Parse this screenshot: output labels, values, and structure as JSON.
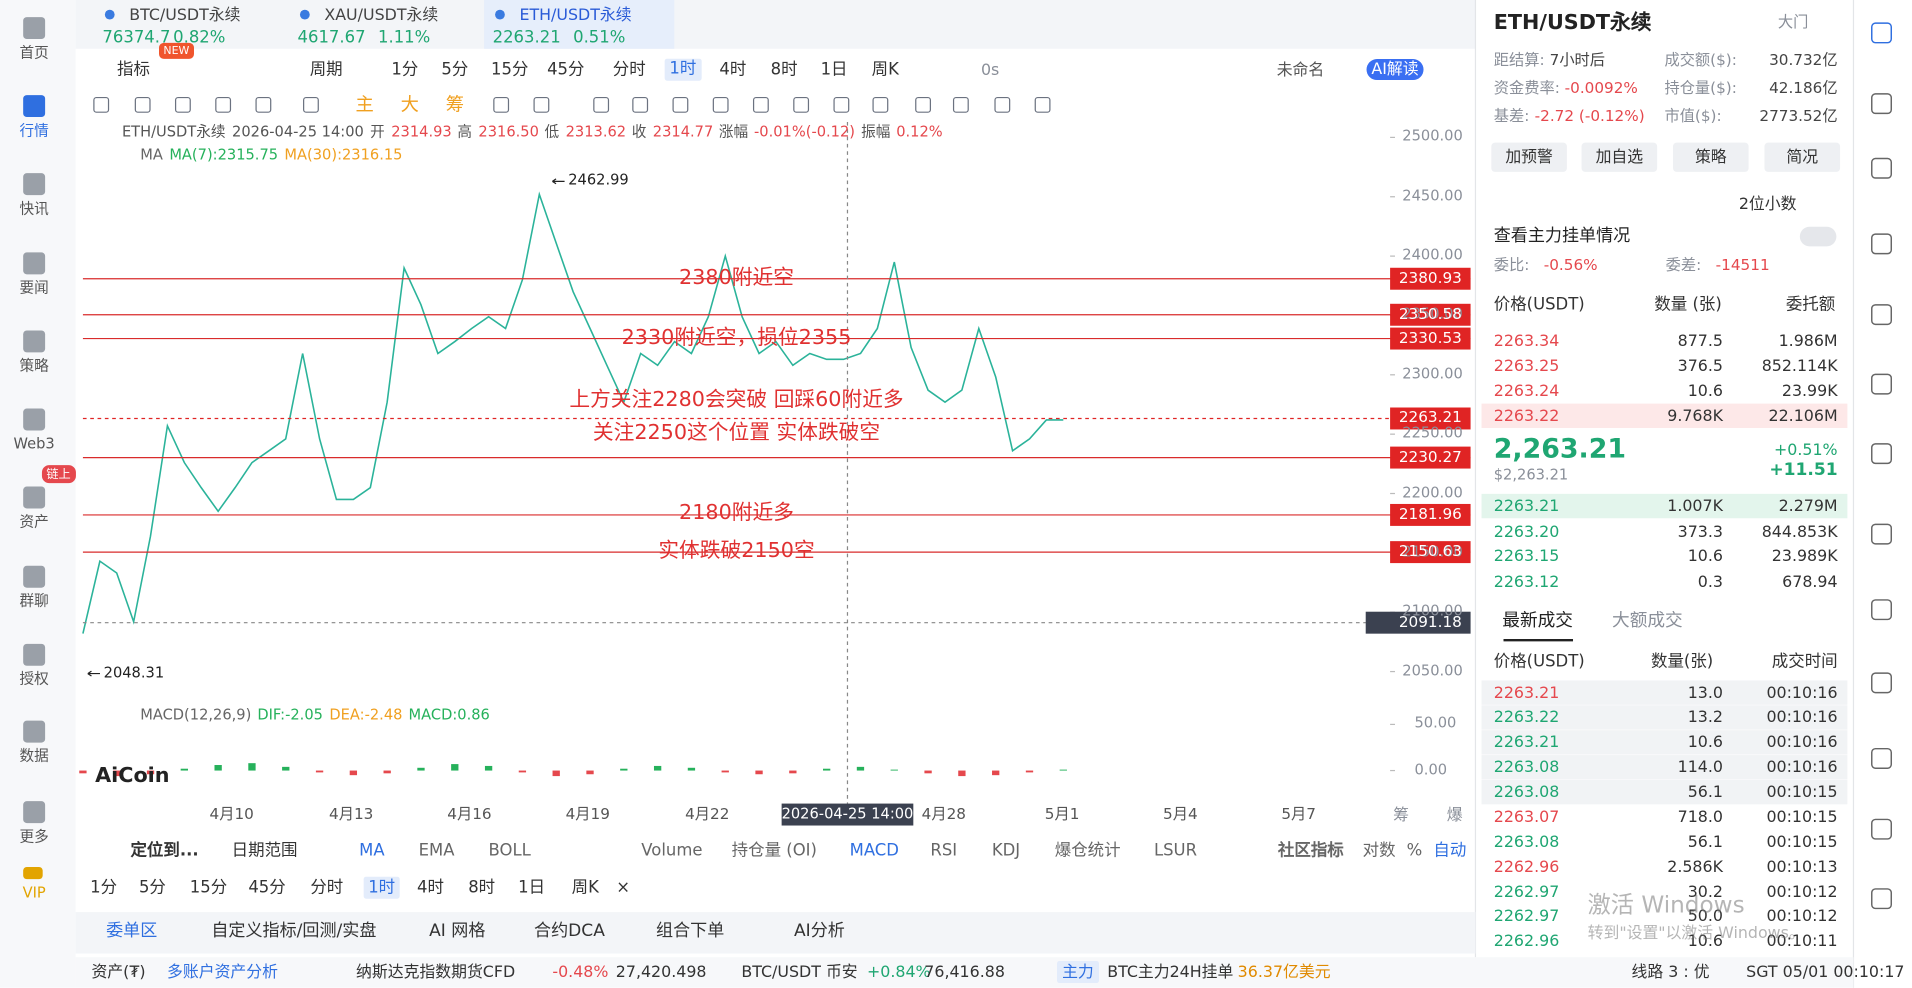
{
  "sidebar": [
    "首页",
    "行情",
    "快讯",
    "要闻",
    "策略",
    "Web3",
    "资产",
    "群聊",
    "授权",
    "数据",
    "更多",
    "VIP"
  ],
  "sidebar_badge": "链上",
  "tabs": [
    {
      "symbol": "BTC/USDT永续",
      "price": "76374.7",
      "change": "0.82%"
    },
    {
      "symbol": "XAU/USDT永续",
      "price": "4617.67",
      "change": "1.11%"
    },
    {
      "symbol": "ETH/USDT永续",
      "price": "2263.21",
      "change": "0.51%"
    }
  ],
  "toolbar": {
    "indicator": "指标",
    "new_badge": "NEW",
    "period": "周期",
    "intervals": [
      "1分",
      "5分",
      "15分",
      "45分",
      "分时",
      "1时",
      "4时",
      "8时",
      "1日",
      "周K"
    ],
    "refresh": "0s",
    "layout": "未命名",
    "ai": "AI解读"
  },
  "drawing_tools": [
    "主",
    "大",
    "筹"
  ],
  "chart": {
    "ohlc": [
      "ETH/USDT永续",
      "2026-04-25 14:00",
      "开",
      "2314.93",
      "高",
      "2316.50",
      "低",
      "2313.62",
      "收",
      "2314.77",
      "涨幅",
      "-0.01%(-0.12)",
      "振幅",
      "0.12%"
    ],
    "ma": [
      "MA",
      "MA(7):2315.75",
      "MA(30):2316.15"
    ],
    "ylim": [
      2022,
      2512
    ],
    "yticks": [
      {
        "value": 2050,
        "label": "2050.00"
      },
      {
        "value": 2100,
        "label": "2100.00"
      },
      {
        "value": 2150,
        "label": "2150.00"
      },
      {
        "value": 2200,
        "label": "2200.00"
      },
      {
        "value": 2250,
        "label": "2250.00"
      },
      {
        "value": 2300,
        "label": "2300.00"
      },
      {
        "value": 2350,
        "label": "2350.00"
      },
      {
        "value": 2400,
        "label": "2400.00"
      },
      {
        "value": 2450,
        "label": "2450.00"
      },
      {
        "value": 2500,
        "label": "2500.00"
      }
    ],
    "levels": [
      {
        "value": 2380.93,
        "label": "2380.93"
      },
      {
        "value": 2350.58,
        "label": "2350.58"
      },
      {
        "value": 2330.53,
        "label": "2330.53"
      },
      {
        "value": 2230.27,
        "label": "2230.27"
      },
      {
        "value": 2181.96,
        "label": "2181.96"
      },
      {
        "value": 2150.63,
        "label": "2150.63"
      }
    ],
    "current": {
      "value": 2263.21,
      "label": "2263.21"
    },
    "crosshair": {
      "value": 2091.18,
      "label": "2091.18"
    },
    "crosshair_time": "2026-04-25 14:00",
    "annotations": [
      "2380附近空",
      "2330附近空，损位2355",
      "上方关注2280会突破 回踩60附近多",
      "关注2250这个位置 实体跌破空",
      "2180附近多",
      "实体跌破2150空"
    ],
    "high_marker": {
      "value": 2462.99,
      "label": "2462.99"
    },
    "low_marker": {
      "value": 2048.31,
      "label": "2048.31"
    },
    "x_labels": [
      "4月10",
      "4月13",
      "4月16",
      "4月19",
      "4月22",
      "4月28",
      "5月1",
      "5月4",
      "5月7"
    ],
    "axis_buttons": [
      "筹",
      "爆"
    ],
    "price": [
      2082,
      2143,
      2133,
      2092,
      2164,
      2257,
      2226,
      2205,
      2185,
      2205,
      2226,
      2236,
      2246,
      2318,
      2246,
      2195,
      2195,
      2205,
      2277,
      2390,
      2359,
      2318,
      2328,
      2339,
      2349,
      2339,
      2380,
      2452,
      2411,
      2370,
      2339,
      2308,
      2277,
      2318,
      2308,
      2328,
      2318,
      2349,
      2400,
      2349,
      2318,
      2328,
      2308,
      2318,
      2313,
      2313,
      2318,
      2339,
      2395,
      2323,
      2287,
      2277,
      2287,
      2339,
      2298,
      2236,
      2246,
      2262,
      2262
    ],
    "price_color": "#2bb39a",
    "macd": {
      "header": [
        "MACD(12,26,9)",
        "DIF:-2.05",
        "DEA:-2.48",
        "MACD:0.86"
      ],
      "ylim": [
        -12,
        62
      ],
      "yticks": [
        {
          "value": 0,
          "label": "0.00"
        },
        {
          "value": 50,
          "label": "50.00"
        }
      ],
      "hist": [
        -3,
        -6,
        -4,
        2,
        6,
        8,
        4,
        -2,
        -5,
        -3,
        3,
        7,
        5,
        -2,
        -6,
        -4,
        2,
        5,
        3,
        -2,
        -4,
        -3,
        2,
        4,
        1,
        -3,
        -6,
        -5,
        -2,
        1
      ]
    },
    "watermark": "AiCoin"
  },
  "panel": {
    "title": "ETH/USDT永续",
    "door": "大门",
    "info": [
      [
        "距结算:",
        "7小时后"
      ],
      [
        "成交额($):",
        "30.732亿"
      ],
      [
        "资金费率:",
        "-0.0092%"
      ],
      [
        "持仓量($):",
        "42.186亿"
      ],
      [
        "基差:",
        "-2.72 (-0.12%)"
      ],
      [
        "市值($):",
        "2773.52亿"
      ]
    ],
    "buttons": [
      "加预警",
      "加自选",
      "策略",
      "简况"
    ],
    "decimals": "2位小数",
    "main_orders": "查看主力挂单情况",
    "ratio": [
      "委比:",
      "-0.56%",
      "委差:",
      "-14511"
    ],
    "book_headers": [
      "价格(USDT)",
      "数量 (张)",
      "委托额"
    ],
    "asks": [
      [
        "2263.34",
        "877.5",
        "1.986M"
      ],
      [
        "2263.25",
        "376.5",
        "852.114K"
      ],
      [
        "2263.24",
        "10.6",
        "23.99K"
      ],
      [
        "2263.22",
        "9.768K",
        "22.106M"
      ]
    ],
    "mid": {
      "price": "2,263.21",
      "usd": "$2,263.21",
      "pct": "+0.51%",
      "chg": "+11.51"
    },
    "bids": [
      [
        "2263.21",
        "1.007K",
        "2.279M"
      ],
      [
        "2263.20",
        "373.3",
        "844.853K"
      ],
      [
        "2263.15",
        "10.6",
        "23.989K"
      ],
      [
        "2263.12",
        "0.3",
        "678.94"
      ]
    ],
    "trade_tabs": [
      "最新成交",
      "大额成交"
    ],
    "trade_headers": [
      "价格(USDT)",
      "数量(张)",
      "成交时间"
    ],
    "trades": [
      {
        "side": "sell",
        "row": [
          "2263.21",
          "13.0",
          "00:10:16"
        ]
      },
      {
        "side": "buy",
        "row": [
          "2263.22",
          "13.2",
          "00:10:16"
        ]
      },
      {
        "side": "buy",
        "row": [
          "2263.21",
          "10.6",
          "00:10:16"
        ]
      },
      {
        "side": "buy",
        "row": [
          "2263.08",
          "114.0",
          "00:10:16"
        ]
      },
      {
        "side": "buy",
        "row": [
          "2263.08",
          "56.1",
          "00:10:15"
        ]
      },
      {
        "side": "sell",
        "row": [
          "2263.07",
          "718.0",
          "00:10:15"
        ]
      },
      {
        "side": "buy",
        "row": [
          "2263.08",
          "56.1",
          "00:10:15"
        ]
      },
      {
        "side": "sell",
        "row": [
          "2262.96",
          "2.586K",
          "00:10:13"
        ]
      },
      {
        "side": "buy",
        "row": [
          "2262.97",
          "30.2",
          "00:10:12"
        ]
      },
      {
        "side": "buy",
        "row": [
          "2262.97",
          "50.0",
          "00:10:12"
        ]
      },
      {
        "side": "buy",
        "row": [
          "2262.96",
          "10.6",
          "00:10:11"
        ]
      }
    ],
    "windows": [
      "激活 Windows",
      "转到\"设置\"以激活 Windows。"
    ]
  },
  "bottom": {
    "nav": [
      "定位到...",
      "日期范围"
    ],
    "indicators": [
      "MA",
      "EMA",
      "BOLL",
      "Volume",
      "持仓量 (OI)",
      "MACD",
      "RSI",
      "KDJ",
      "爆仓统计",
      "LSUR",
      "社区指标",
      "对数",
      "%",
      "自动"
    ],
    "intervals": [
      "1分",
      "5分",
      "15分",
      "45分",
      "分时",
      "1时",
      "4时",
      "8时",
      "1日",
      "周K",
      "×"
    ],
    "tabs": [
      "委单区",
      "自定义指标/回测/实盘",
      "AI 网格",
      "合约DCA",
      "组合下单",
      "AI分析"
    ]
  },
  "status": [
    "资产(₮)",
    "多账户资产分析",
    "纳斯达克指数期货CFD",
    "-0.48%",
    "27,420.498",
    "BTC/USDT 币安",
    "+0.84%",
    "76,416.88",
    "主力",
    "BTC主力24H挂单",
    "36.37亿美元",
    "线路 3 : 优",
    "SGT 05/01 00:10:17"
  ]
}
